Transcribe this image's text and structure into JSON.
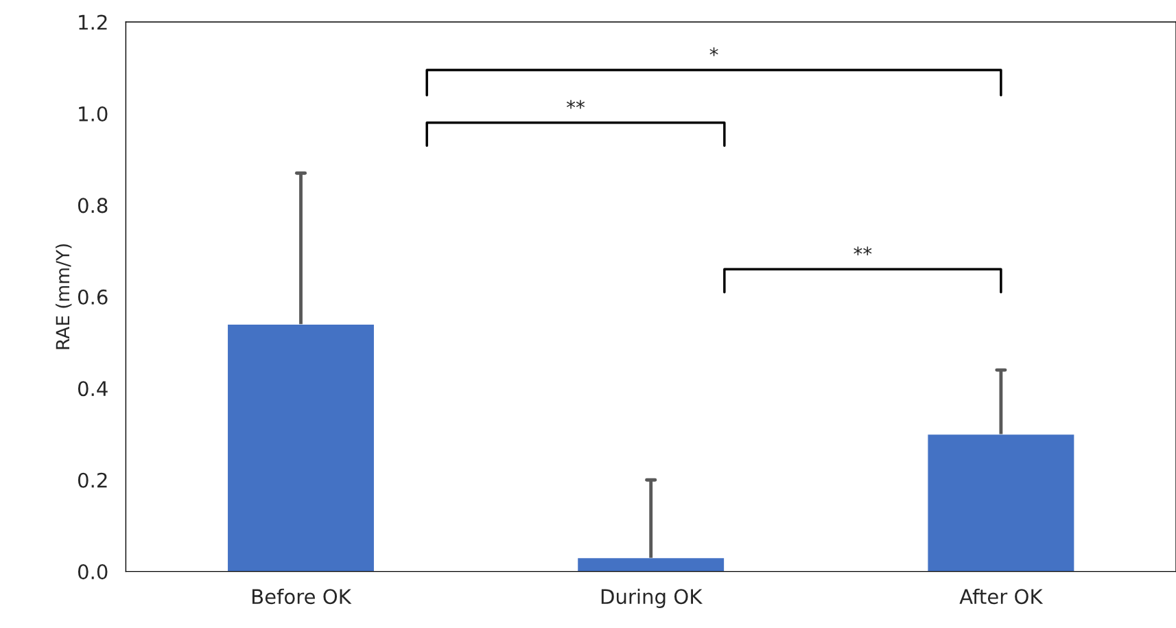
{
  "chart_data": {
    "type": "bar",
    "ylabel": "RAE (mm/Y)",
    "categories": [
      "Before OK",
      "During OK",
      "After OK"
    ],
    "values": [
      0.54,
      0.03,
      0.3
    ],
    "color": "#4472c4",
    "errors": [
      [
        0.54,
        0.87
      ],
      [
        0.03,
        0.2
      ],
      [
        0.3,
        0.44
      ]
    ],
    "ylim": [
      0,
      1.2
    ],
    "yticks": [
      {
        "value": 0,
        "label": "0.0"
      },
      {
        "value": 0.2,
        "label": "0.2"
      },
      {
        "value": 0.4,
        "label": "0.4"
      },
      {
        "value": 0.6,
        "label": "0.6"
      },
      {
        "value": 0.8,
        "label": "0.8"
      },
      {
        "value": 1.0,
        "label": "1.0"
      },
      {
        "value": 1.2,
        "label": "1.2"
      }
    ],
    "annotations": [
      "*",
      "**",
      "**"
    ],
    "grid": false,
    "legend": false
  }
}
